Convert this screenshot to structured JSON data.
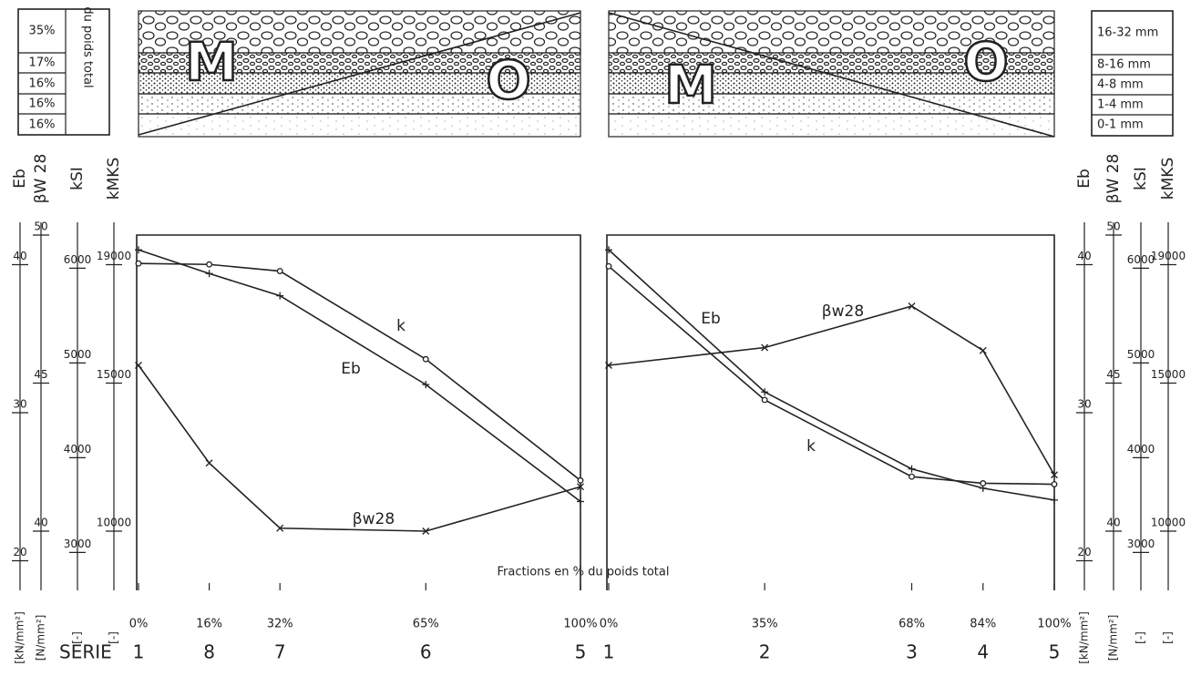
{
  "fractions_table": {
    "percentages": [
      "35%",
      "17%",
      "16%",
      "16%",
      "16%"
    ],
    "label": "du poids total"
  },
  "sizes_table": [
    "16-32 mm",
    "8-16 mm",
    "4-8 mm",
    "1-4 mm",
    "0-1 mm"
  ],
  "diagram_letters": [
    "M",
    "O"
  ],
  "axes": [
    {
      "title": "Eb",
      "unit": "[kN/mm²]",
      "lim": [
        18,
        42
      ],
      "ticks": [
        20,
        30,
        40
      ]
    },
    {
      "title": "βW 28",
      "unit": "[N/mm²]",
      "lim": [
        38,
        50
      ],
      "ticks": [
        40,
        45,
        50
      ]
    },
    {
      "title": "kSI",
      "unit": "[-]",
      "lim": [
        2600,
        6350
      ],
      "ticks": [
        3000,
        4000,
        5000,
        6000
      ]
    },
    {
      "title": "kMKS",
      "unit": "[-]",
      "lim": [
        8000,
        20000
      ],
      "ticks": [
        10000,
        15000,
        19000
      ]
    }
  ],
  "series_label": "SERIE",
  "x_axis_label": "Fractions en % du poids total",
  "chart_data": [
    {
      "type": "line",
      "color": "#222",
      "x": [
        0,
        16,
        32,
        65,
        100
      ],
      "xlim": [
        0,
        100
      ],
      "xticks": [
        {
          "value": 0,
          "label": "0%"
        },
        {
          "value": 16,
          "label": "16%"
        },
        {
          "value": 32,
          "label": "32%"
        },
        {
          "value": 65,
          "label": "65%"
        },
        {
          "value": 100,
          "label": "100%"
        }
      ],
      "series_numbers": [
        "1",
        "8",
        "7",
        "6",
        "5"
      ],
      "series": [
        {
          "name": "Eb",
          "axis": 0,
          "marker": "plus",
          "values": [
            41.0,
            39.4,
            37.9,
            31.9,
            24.0
          ]
        },
        {
          "name": "k",
          "axis": 2,
          "marker": "circle",
          "values": [
            6050,
            6040,
            5970,
            5040,
            3760
          ]
        },
        {
          "name": "βw28",
          "axis": 1,
          "marker": "cross",
          "values": [
            45.6,
            42.3,
            40.1,
            40.0,
            41.5
          ]
        }
      ]
    },
    {
      "type": "line",
      "color": "#222",
      "x": [
        0,
        35,
        68,
        84,
        100
      ],
      "xlim": [
        0,
        100
      ],
      "xticks": [
        {
          "value": 0,
          "label": "0%"
        },
        {
          "value": 35,
          "label": "35%"
        },
        {
          "value": 68,
          "label": "68%"
        },
        {
          "value": 84,
          "label": "84%"
        },
        {
          "value": 100,
          "label": "100%"
        }
      ],
      "series_numbers": [
        "1",
        "2",
        "3",
        "4",
        "5"
      ],
      "series": [
        {
          "name": "Eb",
          "axis": 0,
          "marker": "plus",
          "values": [
            41.0,
            31.4,
            26.2,
            24.9,
            24.1
          ]
        },
        {
          "name": "k",
          "axis": 2,
          "marker": "circle",
          "values": [
            6020,
            4610,
            3800,
            3730,
            3720
          ]
        },
        {
          "name": "βw28",
          "axis": 1,
          "marker": "cross",
          "values": [
            45.6,
            46.2,
            47.6,
            46.1,
            41.9
          ]
        }
      ]
    }
  ]
}
